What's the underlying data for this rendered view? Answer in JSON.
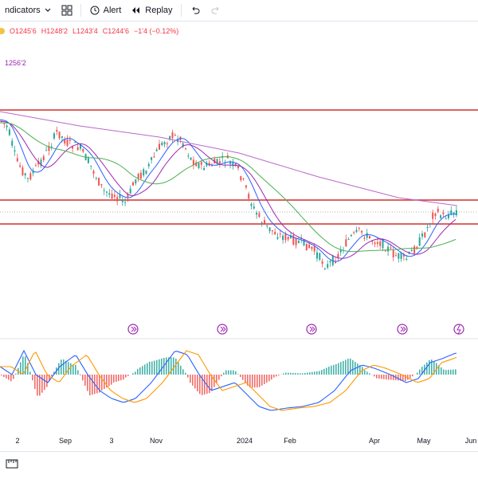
{
  "toolbar": {
    "indicators_label": "ndicators",
    "alert_label": "Alert",
    "replay_label": "Replay"
  },
  "ohlc": {
    "open": "O1245'6",
    "high": "H1248'2",
    "low": "L1243'4",
    "close": "C1244'6",
    "change": "−1'4 (−0.12%)"
  },
  "ma_label": "1256'2",
  "x_axis": [
    "2",
    "Sep",
    "3",
    "Nov",
    "2024",
    "Feb",
    "Apr",
    "May",
    "Jun"
  ],
  "colors": {
    "up": "#26a69a",
    "down": "#ef5350",
    "ma_fast": "#2962ff",
    "ma_mid": "#9c27b0",
    "ma_slow": "#4caf50",
    "ma_long": "#ba68c8",
    "hline": "#d32f2f",
    "macd": "#2962ff",
    "signal": "#ff9800",
    "event": "#9c27b0"
  },
  "icons": [
    "chevron-down-icon",
    "layout-grid-icon",
    "alert-clock-icon",
    "replay-icon",
    "undo-icon",
    "redo-icon",
    "event-icon",
    "lightning-icon",
    "ruler-icon"
  ]
}
